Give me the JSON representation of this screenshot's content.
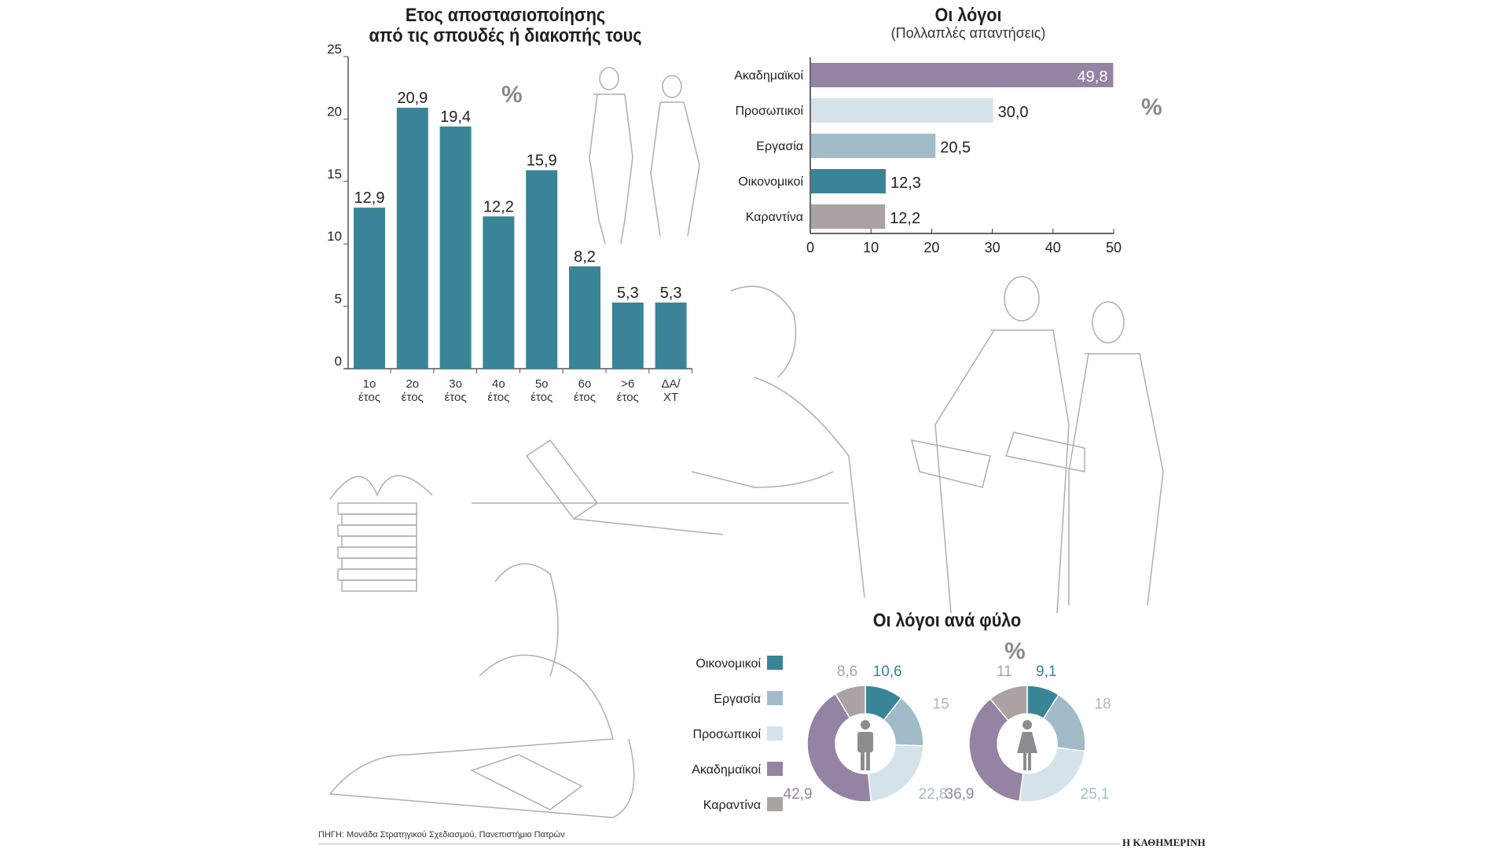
{
  "chart_data": [
    {
      "type": "bar",
      "title": "Ετος αποστασιοποίησης",
      "subtitle": "από τις σπουδές ή διακοπής τους",
      "unit": "%",
      "categories": [
        [
          "1ο",
          "έτος"
        ],
        [
          "2ο",
          "έτος"
        ],
        [
          "3ο",
          "έτος"
        ],
        [
          "4ο",
          "έτος"
        ],
        [
          "5ο",
          "έτος"
        ],
        [
          "6ο",
          "έτος"
        ],
        [
          ">6",
          "έτος"
        ],
        [
          "ΔΑ/",
          "ΧΤ"
        ]
      ],
      "values": [
        12.9,
        20.9,
        19.4,
        12.2,
        15.9,
        8.2,
        5.3,
        5.3
      ],
      "value_labels": [
        "12,9",
        "20,9",
        "19,4",
        "12,2",
        "15,9",
        "8,2",
        "5,3",
        "5,3"
      ],
      "ylim": [
        0,
        25
      ],
      "yticks": [
        0,
        5,
        10,
        15,
        20,
        25
      ],
      "color": "#3a8497"
    },
    {
      "type": "bar",
      "orientation": "horizontal",
      "title": "Οι λόγοι",
      "subtitle": "(Πολλαπλές απαντήσεις)",
      "unit": "%",
      "categories": [
        "Ακαδημαϊκοί",
        "Προσωπικοί",
        "Εργασία",
        "Οικονομικοί",
        "Καραντίνα"
      ],
      "values": [
        49.8,
        30.0,
        20.5,
        12.3,
        12.2
      ],
      "value_labels": [
        "49,8",
        "30,0",
        "20,5",
        "12,3",
        "12,2"
      ],
      "colors": [
        "#9583a3",
        "#d5e2ea",
        "#a1bcc8",
        "#3a8497",
        "#aba3a2"
      ],
      "xlim": [
        0,
        50
      ],
      "xticks": [
        0,
        10,
        20,
        30,
        40,
        50
      ]
    },
    {
      "type": "pie",
      "variant": "donut",
      "title": "Οι λόγοι ανά φύλο",
      "unit": "%",
      "legend": [
        "Οικονομικοί",
        "Εργασία",
        "Προσωπικοί",
        "Ακαδημαϊκοί",
        "Καραντίνα"
      ],
      "colors": [
        "#3a8497",
        "#a1bcc8",
        "#d5e2ea",
        "#9583a3",
        "#aba3a2"
      ],
      "label_colors": [
        "#3a8497",
        "#a1bcc8",
        "#a1bcc8",
        "#9583a3",
        "#aba3a2"
      ],
      "series": [
        {
          "name": "male",
          "icon": "male-icon",
          "values": [
            10.6,
            15,
            22.8,
            42.9,
            8.6
          ],
          "value_labels": [
            "10,6",
            "15",
            "22,8",
            "42,9",
            "8,6"
          ]
        },
        {
          "name": "female",
          "icon": "female-icon",
          "values": [
            9.1,
            18,
            25.1,
            36.9,
            11
          ],
          "value_labels": [
            "9,1",
            "18",
            "25,1",
            "36,9",
            "11"
          ]
        }
      ]
    }
  ],
  "footer": {
    "source": "ΠΗΓΗ: Μονάδα Στρατηγικού Σχεδιασμού, Πανεπιστήμιο Πατρών",
    "brand": "Η ΚΑΘΗΜΕΡΙΝΗ"
  }
}
